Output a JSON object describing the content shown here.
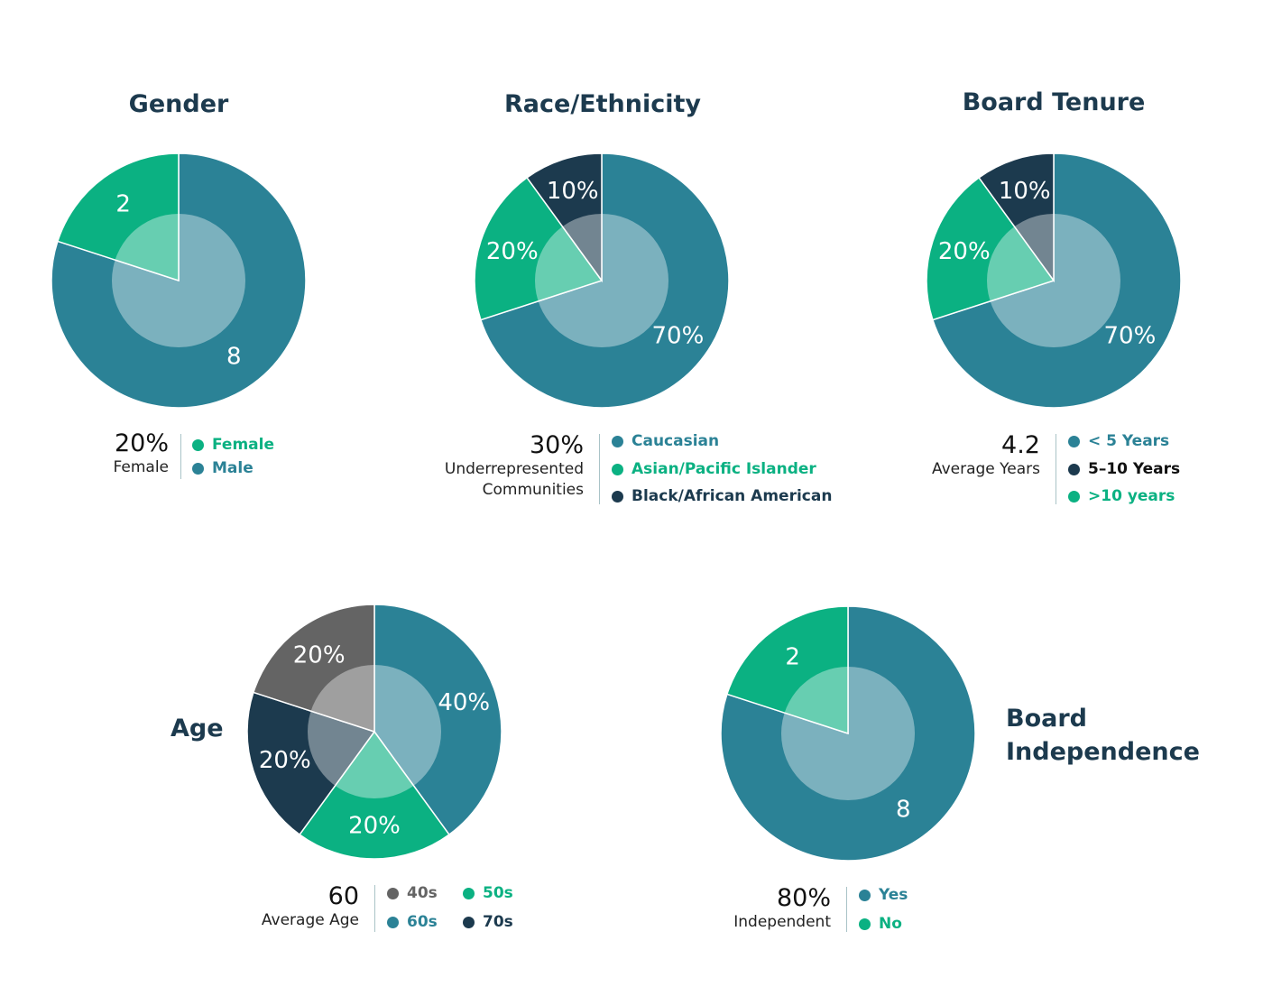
{
  "colors": {
    "teal": "#2b8296",
    "green": "#0bb182",
    "navy": "#1c3a4e",
    "gray": "#646464",
    "title": "#1c3a4e"
  },
  "chart_data": [
    {
      "id": "gender",
      "type": "pie",
      "title": "Gender",
      "categories": [
        "Male",
        "Female"
      ],
      "values": [
        8,
        2
      ],
      "slice_labels": [
        "8",
        "2"
      ],
      "colors": [
        "#2b8296",
        "#0bb182"
      ],
      "stat": {
        "value": "20%",
        "label": "Female"
      },
      "legend": [
        {
          "label": "Female",
          "color": "#0bb182"
        },
        {
          "label": "Male",
          "color": "#2b8296"
        }
      ]
    },
    {
      "id": "race",
      "type": "pie",
      "title": "Race/Ethnicity",
      "categories": [
        "Caucasian",
        "Asian/Pacific Islander",
        "Black/African American"
      ],
      "values": [
        70,
        20,
        10
      ],
      "slice_labels": [
        "70%",
        "20%",
        "10%"
      ],
      "colors": [
        "#2b8296",
        "#0bb182",
        "#1c3a4e"
      ],
      "stat": {
        "value": "30%",
        "label_lines": [
          "Underrepresented",
          "Communities"
        ]
      },
      "legend": [
        {
          "label": "Caucasian",
          "color": "#2b8296"
        },
        {
          "label": "Asian/Pacific Islander",
          "color": "#0bb182"
        },
        {
          "label": "Black/African American",
          "color": "#1c3a4e"
        }
      ]
    },
    {
      "id": "tenure",
      "type": "pie",
      "title": "Board Tenure",
      "categories": [
        "< 5 Years",
        "5–10 Years",
        ">10 years"
      ],
      "values": [
        70,
        10,
        20
      ],
      "slice_labels": [
        "70%",
        "20%",
        "10%"
      ],
      "slice_order_values": [
        70,
        20,
        10
      ],
      "slice_order_colors": [
        "#2b8296",
        "#0bb182",
        "#1c3a4e"
      ],
      "stat": {
        "value": "4.2",
        "label": "Average Years"
      },
      "legend": [
        {
          "label": "< 5 Years",
          "color": "#2b8296",
          "text_color": "#2b8296"
        },
        {
          "label": "5–10 Years",
          "color": "#1c3a4e",
          "text_color": "#111111"
        },
        {
          "label": ">10 years",
          "color": "#0bb182",
          "text_color": "#0bb182"
        }
      ]
    },
    {
      "id": "age",
      "type": "pie",
      "title": "Age",
      "categories": [
        "60s",
        "50s",
        "70s",
        "40s"
      ],
      "values": [
        40,
        20,
        20,
        20
      ],
      "slice_labels": [
        "40%",
        "20%",
        "20%",
        "20%"
      ],
      "colors": [
        "#2b8296",
        "#0bb182",
        "#1c3a4e",
        "#646464"
      ],
      "stat": {
        "value": "60",
        "label": "Average Age"
      },
      "legend": [
        {
          "label": "40s",
          "color": "#646464"
        },
        {
          "label": "50s",
          "color": "#0bb182"
        },
        {
          "label": "60s",
          "color": "#2b8296"
        },
        {
          "label": "70s",
          "color": "#1c3a4e"
        }
      ]
    },
    {
      "id": "independence",
      "type": "pie",
      "title_lines": [
        "Board",
        "Independence"
      ],
      "categories": [
        "Yes",
        "No"
      ],
      "values": [
        8,
        2
      ],
      "slice_labels": [
        "8",
        "2"
      ],
      "colors": [
        "#2b8296",
        "#0bb182"
      ],
      "stat": {
        "value": "80%",
        "label": "Independent"
      },
      "legend": [
        {
          "label": "Yes",
          "color": "#2b8296"
        },
        {
          "label": "No",
          "color": "#0bb182"
        }
      ]
    }
  ]
}
